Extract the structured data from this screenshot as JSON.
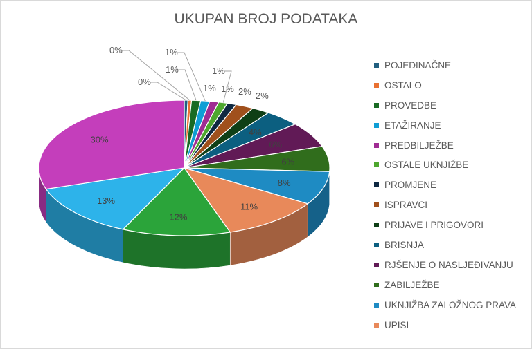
{
  "chart_data": {
    "type": "pie",
    "style": "3d",
    "title": "UKUPAN BROJ PODATAKA",
    "legend_position": "right",
    "slices": [
      {
        "name": "POJEDINAČNE",
        "value": 0,
        "label": "0%",
        "color": "#215f80"
      },
      {
        "name": "OSTALO",
        "value": 0,
        "label": "0%",
        "color": "#e97132"
      },
      {
        "name": "PROVEDBE",
        "value": 1,
        "label": "1%",
        "color": "#196b24"
      },
      {
        "name": "ETAŽIRANJE",
        "value": 1,
        "label": "1%",
        "color": "#0f9ed5"
      },
      {
        "name": "PREDBILJEŽBE",
        "value": 1,
        "label": "1%",
        "color": "#a02b93"
      },
      {
        "name": "OSTALE UKNJIŽBE",
        "value": 1,
        "label": "1%",
        "color": "#4ea72e"
      },
      {
        "name": "PROMJENE",
        "value": 1,
        "label": "1%",
        "color": "#0e2841"
      },
      {
        "name": "ISPRAVCI",
        "value": 2,
        "label": "2%",
        "color": "#a0501c"
      },
      {
        "name": "PRIJAVE I PRIGOVORI",
        "value": 2,
        "label": "2%",
        "color": "#0f3f16"
      },
      {
        "name": "BRISNJA",
        "value": 4,
        "label": "4%",
        "color": "#0c5f80"
      },
      {
        "name": "RJŠENJE O NASLJEĐIVANJU",
        "value": 6,
        "label": "6%",
        "color": "#611a56"
      },
      {
        "name": "ZABILJEŽBE",
        "value": 6,
        "label": "6%",
        "color": "#306d1c"
      },
      {
        "name": "UKNJIŽBA ZALOŽNOG PRAVA",
        "value": 8,
        "label": "8%",
        "color": "#1e8bc3"
      },
      {
        "name": "UPISI",
        "value": 11,
        "label": "11%",
        "color": "#e8895a"
      },
      {
        "value": 12,
        "label": "12%",
        "color": "#2ba43a"
      },
      {
        "value": 13,
        "label": "13%",
        "color": "#2db3ea"
      },
      {
        "value": 30,
        "label": "30%",
        "color": "#c43ebb"
      }
    ]
  }
}
